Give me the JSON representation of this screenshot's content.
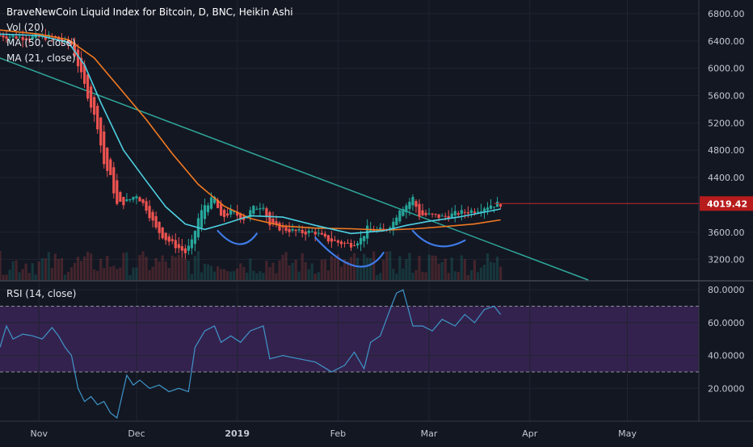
{
  "colors": {
    "background": "#131722",
    "grid": "#1f2430",
    "candle_up": "#26a69a",
    "candle_down": "#ef5350",
    "ma50": "#f37a21",
    "ma21": "#4dd0e1",
    "trendline": "#2fa89a",
    "price_line": "#c62828",
    "price_tag_bg": "#b71c1c",
    "drawings": "#3f7be8",
    "rsi_line": "#3e95c9",
    "rsi_band": "#3b2556",
    "rsi_dashes": "#8a8d96"
  },
  "legend": {
    "title": "BraveNewCoin Liquid Index for Bitcoin, D, BNC, Heikin Ashi",
    "vol": "Vol (20)",
    "ma50": "MA (50, close)",
    "ma21": "MA (21, close)",
    "rsi": "RSI (14, close)"
  },
  "last_price": "4019.42",
  "chart_data": [
    {
      "type": "candlestick",
      "title": "BraveNewCoin Liquid Index for Bitcoin, D, BNC, Heikin Ashi",
      "x_range": [
        "2018-10-20",
        "2019-05-23"
      ],
      "y_range": [
        2900,
        7000
      ],
      "y_ticks": [
        "6800.00",
        "6400.00",
        "6000.00",
        "5600.00",
        "5200.00",
        "4800.00",
        "4400.00",
        "3600.00",
        "3200.00"
      ],
      "x_ticks": [
        "Nov",
        "Dec",
        "2019",
        "Feb",
        "Mar",
        "Apr",
        "May"
      ],
      "x_tick_dates": [
        "2018-11-01",
        "2018-12-01",
        "2019-01-01",
        "2019-02-01",
        "2019-03-01",
        "2019-04-01",
        "2019-05-01"
      ],
      "close_anchors": [
        [
          "2018-10-20",
          6480
        ],
        [
          "2018-10-28",
          6450
        ],
        [
          "2018-11-05",
          6460
        ],
        [
          "2018-11-11",
          6350
        ],
        [
          "2018-11-14",
          5900
        ],
        [
          "2018-11-16",
          5600
        ],
        [
          "2018-11-19",
          5150
        ],
        [
          "2018-11-21",
          4600
        ],
        [
          "2018-11-23",
          4400
        ],
        [
          "2018-11-25",
          4000
        ],
        [
          "2018-11-28",
          4050
        ],
        [
          "2018-12-01",
          4150
        ],
        [
          "2018-12-04",
          3950
        ],
        [
          "2018-12-07",
          3650
        ],
        [
          "2018-12-10",
          3500
        ],
        [
          "2018-12-13",
          3400
        ],
        [
          "2018-12-16",
          3300
        ],
        [
          "2018-12-18",
          3450
        ],
        [
          "2018-12-20",
          3800
        ],
        [
          "2018-12-22",
          4000
        ],
        [
          "2018-12-25",
          4100
        ],
        [
          "2018-12-27",
          3800
        ],
        [
          "2018-12-30",
          3900
        ],
        [
          "2019-01-03",
          3800
        ],
        [
          "2019-01-06",
          3950
        ],
        [
          "2019-01-09",
          4000
        ],
        [
          "2019-01-11",
          3700
        ],
        [
          "2019-01-15",
          3650
        ],
        [
          "2019-01-20",
          3600
        ],
        [
          "2019-01-25",
          3600
        ],
        [
          "2019-01-28",
          3500
        ],
        [
          "2019-02-01",
          3450
        ],
        [
          "2019-02-05",
          3420
        ],
        [
          "2019-02-08",
          3500
        ],
        [
          "2019-02-10",
          3650
        ],
        [
          "2019-02-15",
          3620
        ],
        [
          "2019-02-18",
          3750
        ],
        [
          "2019-02-20",
          3950
        ],
        [
          "2019-02-22",
          4000
        ],
        [
          "2019-02-24",
          4100
        ],
        [
          "2019-02-26",
          3850
        ],
        [
          "2019-03-01",
          3850
        ],
        [
          "2019-03-05",
          3820
        ],
        [
          "2019-03-10",
          3880
        ],
        [
          "2019-03-15",
          3920
        ],
        [
          "2019-03-20",
          4000
        ],
        [
          "2019-03-23",
          4019.42
        ]
      ],
      "volume_note": "Vol (20) histogram shown faintly behind candles",
      "series": [
        {
          "name": "MA (50, close)",
          "points": [
            [
              "2018-10-20",
              6560
            ],
            [
              "2018-11-01",
              6500
            ],
            [
              "2018-11-10",
              6420
            ],
            [
              "2018-11-18",
              6150
            ],
            [
              "2018-11-26",
              5700
            ],
            [
              "2018-12-04",
              5250
            ],
            [
              "2018-12-12",
              4750
            ],
            [
              "2018-12-20",
              4300
            ],
            [
              "2018-12-28",
              3980
            ],
            [
              "2019-01-05",
              3800
            ],
            [
              "2019-01-15",
              3690
            ],
            [
              "2019-01-25",
              3660
            ],
            [
              "2019-02-05",
              3650
            ],
            [
              "2019-02-15",
              3630
            ],
            [
              "2019-02-25",
              3650
            ],
            [
              "2019-03-05",
              3680
            ],
            [
              "2019-03-15",
              3720
            ],
            [
              "2019-03-23",
              3780
            ]
          ]
        },
        {
          "name": "MA (21, close)",
          "points": [
            [
              "2018-10-20",
              6500
            ],
            [
              "2018-11-01",
              6480
            ],
            [
              "2018-11-10",
              6380
            ],
            [
              "2018-11-15",
              6050
            ],
            [
              "2018-11-20",
              5500
            ],
            [
              "2018-11-27",
              4800
            ],
            [
              "2018-12-04",
              4350
            ],
            [
              "2018-12-10",
              3970
            ],
            [
              "2018-12-16",
              3720
            ],
            [
              "2018-12-22",
              3640
            ],
            [
              "2018-12-28",
              3720
            ],
            [
              "2019-01-05",
              3840
            ],
            [
              "2019-01-15",
              3820
            ],
            [
              "2019-01-25",
              3700
            ],
            [
              "2019-02-05",
              3580
            ],
            [
              "2019-02-15",
              3620
            ],
            [
              "2019-02-22",
              3700
            ],
            [
              "2019-03-01",
              3760
            ],
            [
              "2019-03-10",
              3820
            ],
            [
              "2019-03-23",
              3940
            ]
          ]
        }
      ]
    },
    {
      "type": "line",
      "title": "RSI (14, close)",
      "y_range": [
        0,
        85
      ],
      "y_ticks": [
        "80.0000",
        "60.0000",
        "40.0000",
        "20.0000"
      ],
      "bands": [
        70,
        30
      ],
      "series": [
        {
          "name": "RSI (14, close)",
          "points": [
            [
              "2018-10-20",
              45
            ],
            [
              "2018-10-22",
              58
            ],
            [
              "2018-10-24",
              50
            ],
            [
              "2018-10-27",
              53
            ],
            [
              "2018-10-30",
              52
            ],
            [
              "2018-11-02",
              50
            ],
            [
              "2018-11-05",
              57
            ],
            [
              "2018-11-07",
              52
            ],
            [
              "2018-11-09",
              45
            ],
            [
              "2018-11-11",
              40
            ],
            [
              "2018-11-13",
              20
            ],
            [
              "2018-11-15",
              12
            ],
            [
              "2018-11-17",
              15
            ],
            [
              "2018-11-19",
              10
            ],
            [
              "2018-11-21",
              12
            ],
            [
              "2018-11-23",
              5
            ],
            [
              "2018-11-25",
              2
            ],
            [
              "2018-11-28",
              28
            ],
            [
              "2018-11-30",
              22
            ],
            [
              "2018-12-02",
              25
            ],
            [
              "2018-12-05",
              20
            ],
            [
              "2018-12-08",
              22
            ],
            [
              "2018-12-11",
              18
            ],
            [
              "2018-12-14",
              20
            ],
            [
              "2018-12-17",
              18
            ],
            [
              "2018-12-19",
              45
            ],
            [
              "2018-12-22",
              55
            ],
            [
              "2018-12-25",
              58
            ],
            [
              "2018-12-27",
              48
            ],
            [
              "2018-12-30",
              52
            ],
            [
              "2019-01-02",
              48
            ],
            [
              "2019-01-05",
              55
            ],
            [
              "2019-01-09",
              58
            ],
            [
              "2019-01-11",
              38
            ],
            [
              "2019-01-15",
              40
            ],
            [
              "2019-01-20",
              38
            ],
            [
              "2019-01-25",
              36
            ],
            [
              "2019-01-30",
              30
            ],
            [
              "2019-02-03",
              34
            ],
            [
              "2019-02-06",
              42
            ],
            [
              "2019-02-09",
              32
            ],
            [
              "2019-02-11",
              48
            ],
            [
              "2019-02-14",
              52
            ],
            [
              "2019-02-17",
              68
            ],
            [
              "2019-02-19",
              78
            ],
            [
              "2019-02-21",
              80
            ],
            [
              "2019-02-24",
              58
            ],
            [
              "2019-02-27",
              58
            ],
            [
              "2019-03-02",
              55
            ],
            [
              "2019-03-05",
              62
            ],
            [
              "2019-03-09",
              58
            ],
            [
              "2019-03-12",
              65
            ],
            [
              "2019-03-15",
              60
            ],
            [
              "2019-03-18",
              68
            ],
            [
              "2019-03-21",
              70
            ],
            [
              "2019-03-23",
              65
            ]
          ]
        }
      ]
    }
  ]
}
